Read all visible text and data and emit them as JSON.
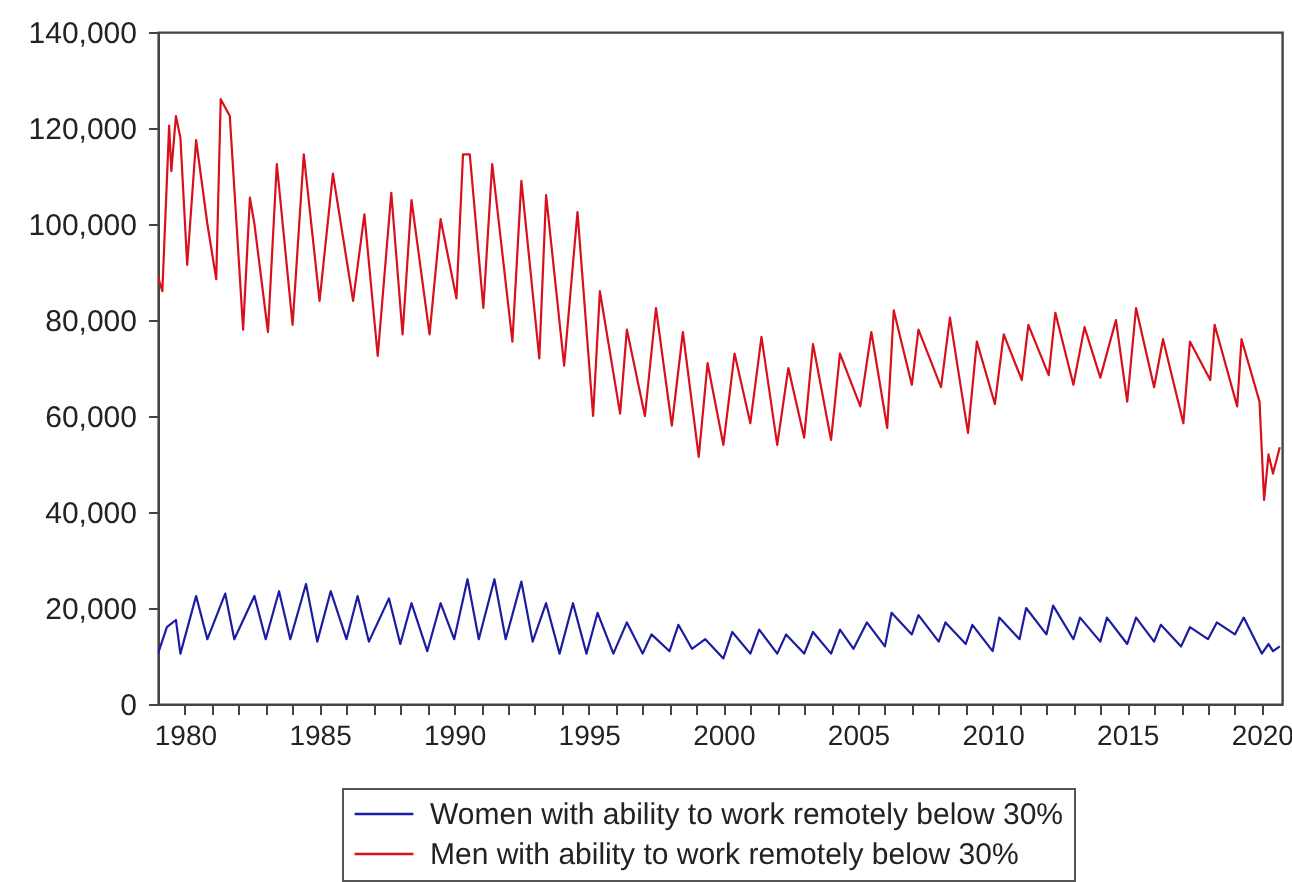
{
  "chart_data": {
    "type": "line",
    "legend": "bottom",
    "xlim": [
      "1979-01",
      "2020-10"
    ],
    "xticks": [
      "1980",
      {
        "value": "1981",
        "label": null
      },
      {
        "value": "1982",
        "label": null
      },
      {
        "value": "1983",
        "label": null
      },
      {
        "value": "1984",
        "label": null
      },
      "1985",
      {
        "value": "1986",
        "label": null
      },
      {
        "value": "1987",
        "label": null
      },
      {
        "value": "1988",
        "label": null
      },
      {
        "value": "1989",
        "label": null
      },
      "1990",
      {
        "value": "1991",
        "label": null
      },
      {
        "value": "1992",
        "label": null
      },
      {
        "value": "1993",
        "label": null
      },
      {
        "value": "1994",
        "label": null
      },
      "1995",
      {
        "value": "1996",
        "label": null
      },
      {
        "value": "1997",
        "label": null
      },
      {
        "value": "1998",
        "label": null
      },
      {
        "value": "1999",
        "label": null
      },
      "2000",
      {
        "value": "2001",
        "label": null
      },
      {
        "value": "2002",
        "label": null
      },
      {
        "value": "2003",
        "label": null
      },
      {
        "value": "2004",
        "label": null
      },
      "2005",
      {
        "value": "2006",
        "label": null
      },
      {
        "value": "2007",
        "label": null
      },
      {
        "value": "2008",
        "label": null
      },
      {
        "value": "2009",
        "label": null
      },
      "2010",
      {
        "value": "2011",
        "label": null
      },
      {
        "value": "2012",
        "label": null
      },
      {
        "value": "2013",
        "label": null
      },
      {
        "value": "2014",
        "label": null
      },
      "2015",
      {
        "value": "2016",
        "label": null
      },
      {
        "value": "2017",
        "label": null
      },
      {
        "value": "2018",
        "label": null
      },
      {
        "value": "2019",
        "label": null
      },
      "2020"
    ],
    "ylim": [
      0,
      140000
    ],
    "yticks": [
      0,
      {
        "value": 20000,
        "label": "20,000"
      },
      {
        "value": 40000,
        "label": "40,000"
      },
      {
        "value": 60000,
        "label": "60,000"
      },
      {
        "value": 80000,
        "label": "80,000"
      },
      {
        "value": 100000,
        "label": "100,000"
      },
      {
        "value": 120000,
        "label": "120,000"
      },
      {
        "value": 140000,
        "label": "140,000"
      }
    ],
    "series": [
      {
        "name": "Women with ability to work remotely below 30%",
        "color": "#1c1ca0",
        "x": [
          "1979-01",
          "1979-05",
          "1979-09",
          "1979-11",
          "1980-06",
          "1980-11",
          "1981-07",
          "1981-11",
          "1982-08",
          "1983-01",
          "1983-07",
          "1983-12",
          "1984-07",
          "1984-12",
          "1985-06",
          "1986-01",
          "1986-06",
          "1986-11",
          "1987-08",
          "1988-01",
          "1988-06",
          "1989-01",
          "1989-07",
          "1990-01",
          "1990-07",
          "1990-12",
          "1991-07",
          "1991-12",
          "1992-07",
          "1992-12",
          "1993-06",
          "1993-12",
          "1994-06",
          "1994-12",
          "1995-05",
          "1995-12",
          "1996-06",
          "1997-01",
          "1997-05",
          "1998-01",
          "1998-05",
          "1998-11",
          "1999-05",
          "2000-01",
          "2000-05",
          "2001-01",
          "2001-05",
          "2002-01",
          "2002-05",
          "2003-01",
          "2003-05",
          "2004-01",
          "2004-05",
          "2004-11",
          "2005-05",
          "2006-01",
          "2006-04",
          "2007-01",
          "2007-04",
          "2008-01",
          "2008-04",
          "2009-01",
          "2009-04",
          "2010-01",
          "2010-04",
          "2011-01",
          "2011-04",
          "2012-01",
          "2012-04",
          "2013-01",
          "2013-04",
          "2014-01",
          "2014-04",
          "2015-01",
          "2015-05",
          "2016-01",
          "2016-04",
          "2017-01",
          "2017-05",
          "2018-01",
          "2018-05",
          "2019-01",
          "2019-05",
          "2020-01",
          "2020-04",
          "2020-06",
          "2020-09"
        ],
        "values": [
          10500,
          16000,
          17500,
          10500,
          22500,
          13500,
          23000,
          13500,
          22500,
          13500,
          23500,
          13500,
          25000,
          13000,
          23500,
          13500,
          22500,
          13000,
          22000,
          12500,
          21000,
          11000,
          21000,
          13500,
          26000,
          13500,
          26000,
          13500,
          25500,
          13000,
          21000,
          10500,
          21000,
          10500,
          19000,
          10500,
          17000,
          10500,
          14500,
          11000,
          16500,
          11500,
          13500,
          9500,
          15000,
          10500,
          15500,
          10500,
          14500,
          10500,
          15000,
          10500,
          15500,
          11500,
          17000,
          12000,
          19000,
          14500,
          18500,
          13000,
          17000,
          12500,
          16500,
          11000,
          18000,
          13500,
          20000,
          14500,
          20500,
          13500,
          18000,
          13000,
          18000,
          12500,
          18000,
          13000,
          16500,
          12000,
          16000,
          13500,
          17000,
          14500,
          18000,
          10500,
          12500,
          11000,
          12000
        ]
      },
      {
        "name": "Men with ability to work remotely below 30%",
        "color": "#d8101c",
        "x": [
          "1979-01",
          "1979-03",
          "1979-06",
          "1979-07",
          "1979-09",
          "1979-11",
          "1980-02",
          "1980-06",
          "1980-11",
          "1981-03",
          "1981-05",
          "1981-09",
          "1982-03",
          "1982-06",
          "1982-08",
          "1983-02",
          "1983-06",
          "1984-01",
          "1984-06",
          "1985-01",
          "1985-07",
          "1986-04",
          "1986-09",
          "1987-03",
          "1987-09",
          "1988-02",
          "1988-06",
          "1989-02",
          "1989-07",
          "1990-02",
          "1990-05",
          "1990-08",
          "1991-02",
          "1991-06",
          "1992-03",
          "1992-07",
          "1993-03",
          "1993-06",
          "1994-02",
          "1994-08",
          "1995-03",
          "1995-06",
          "1996-03",
          "1996-06",
          "1997-02",
          "1997-07",
          "1998-02",
          "1998-07",
          "1999-02",
          "1999-06",
          "2000-01",
          "2000-06",
          "2001-01",
          "2001-06",
          "2002-01",
          "2002-06",
          "2003-01",
          "2003-05",
          "2004-01",
          "2004-05",
          "2005-02",
          "2005-07",
          "2006-02",
          "2006-05",
          "2007-01",
          "2007-04",
          "2008-02",
          "2008-06",
          "2009-02",
          "2009-06",
          "2010-02",
          "2010-06",
          "2011-02",
          "2011-05",
          "2012-02",
          "2012-05",
          "2013-01",
          "2013-06",
          "2014-01",
          "2014-08",
          "2015-01",
          "2015-05",
          "2016-01",
          "2016-05",
          "2017-02",
          "2017-05",
          "2018-02",
          "2018-04",
          "2019-02",
          "2019-04",
          "2019-12",
          "2020-02",
          "2020-04",
          "2020-06",
          "2020-09"
        ],
        "values": [
          89000,
          86000,
          120500,
          111000,
          122500,
          118000,
          91500,
          117500,
          100000,
          88500,
          126000,
          122500,
          78000,
          105500,
          100000,
          77500,
          112500,
          79000,
          114500,
          84000,
          110500,
          84000,
          102000,
          72500,
          106500,
          77000,
          105000,
          77000,
          101000,
          84500,
          114500,
          114500,
          82500,
          112500,
          75500,
          109000,
          72000,
          106000,
          70500,
          102500,
          60000,
          86000,
          60500,
          78000,
          60000,
          82500,
          58000,
          77500,
          51500,
          71000,
          54000,
          73000,
          58500,
          76500,
          54000,
          70000,
          55500,
          75000,
          55000,
          73000,
          62000,
          77500,
          57500,
          82000,
          66500,
          78000,
          66000,
          80500,
          56500,
          75500,
          62500,
          77000,
          67500,
          79000,
          68500,
          81500,
          66500,
          78500,
          68000,
          80000,
          63000,
          82500,
          66000,
          76000,
          58500,
          75500,
          67500,
          79000,
          62000,
          76000,
          63000,
          42500,
          52000,
          48000,
          53500
        ]
      }
    ]
  }
}
